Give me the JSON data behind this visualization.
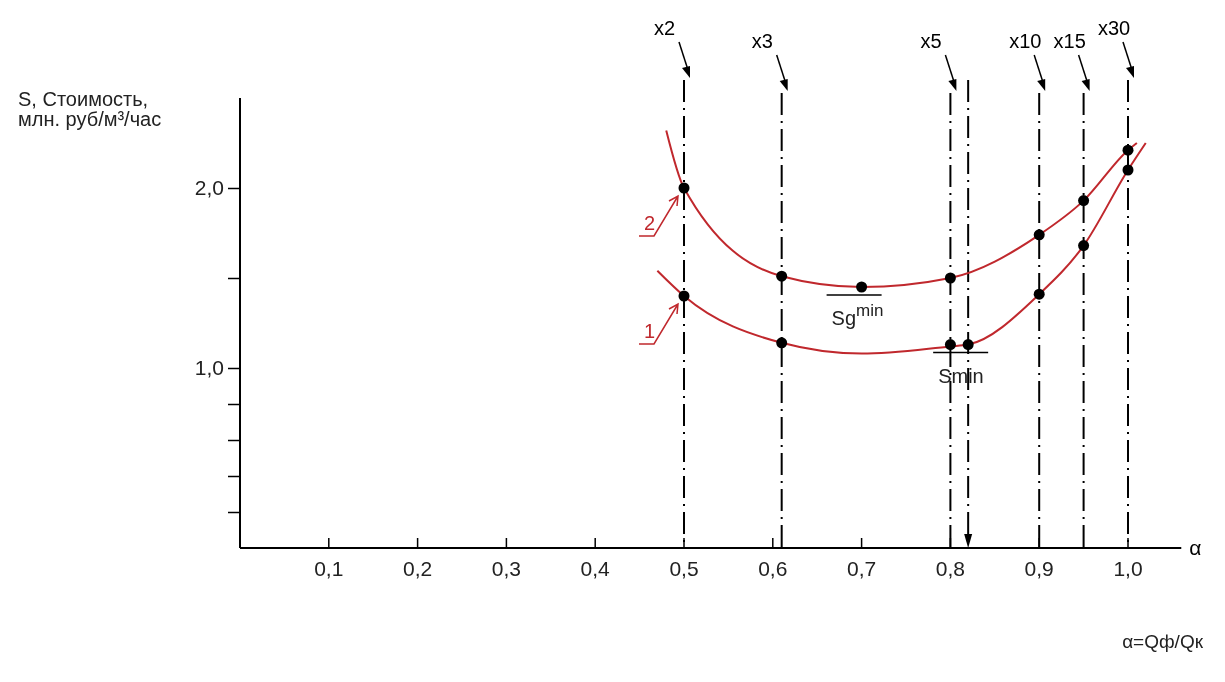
{
  "chart_data": {
    "type": "line",
    "ylabel": "S, Стоимость,\nмлн. руб/м³/час",
    "xlabel": "α",
    "legend": "center",
    "xlim": [
      0,
      1.06
    ],
    "ylim": [
      0,
      2.5
    ],
    "xticks": [
      {
        "value": 0.1,
        "label": "0,1"
      },
      {
        "value": 0.2,
        "label": "0,2"
      },
      {
        "value": 0.3,
        "label": "0,3"
      },
      {
        "value": 0.4,
        "label": "0,4"
      },
      {
        "value": 0.5,
        "label": "0,5"
      },
      {
        "value": 0.6,
        "label": "0,6"
      },
      {
        "value": 0.7,
        "label": "0,7"
      },
      {
        "value": 0.8,
        "label": "0,8"
      },
      {
        "value": 0.9,
        "label": "0,9"
      },
      {
        "value": 1.0,
        "label": "1,0"
      }
    ],
    "yticks": [
      {
        "value": 0.2,
        "label": null
      },
      {
        "value": 0.4,
        "label": null
      },
      {
        "value": 0.6,
        "label": null
      },
      {
        "value": 0.8,
        "label": null
      },
      {
        "value": 1.0,
        "label": "1,0"
      },
      {
        "value": 1.5,
        "label": null
      },
      {
        "value": 2.0,
        "label": "2,0"
      }
    ],
    "series": [
      {
        "name": "1",
        "type": "line",
        "color": "#c0282d",
        "marker": "none",
        "x": [
          0.47,
          0.5,
          0.61,
          0.7,
          0.8,
          0.82,
          0.9,
          0.95,
          1.0,
          1.02
        ],
        "values": [
          1.54,
          1.4,
          1.14,
          1.08,
          1.12,
          1.13,
          1.41,
          1.68,
          2.1,
          2.25
        ]
      },
      {
        "name": "2",
        "type": "line",
        "color": "#c0282d",
        "marker": "none",
        "x": [
          0.48,
          0.5,
          0.61,
          0.7,
          0.8,
          0.9,
          0.95,
          1.0,
          1.01
        ],
        "values": [
          2.32,
          2.0,
          1.51,
          1.45,
          1.5,
          1.74,
          1.93,
          2.21,
          2.25
        ]
      },
      {
        "type": "scatter",
        "color": "#000000",
        "marker": "circle",
        "x": [
          0.5,
          0.61,
          0.8,
          0.82,
          0.9,
          0.95,
          1.0
        ],
        "values": [
          1.4,
          1.14,
          1.13,
          1.13,
          1.41,
          1.68,
          2.1
        ]
      },
      {
        "type": "scatter",
        "color": "#000000",
        "marker": "circle",
        "x": [
          0.5,
          0.61,
          0.7,
          0.8,
          0.9,
          0.95,
          1.0
        ],
        "values": [
          2.0,
          1.51,
          1.45,
          1.5,
          1.74,
          1.93,
          2.21
        ]
      }
    ],
    "ref_lines": [
      {
        "axis": "x",
        "value": 0.5,
        "label": "x2",
        "line_style": "dashed"
      },
      {
        "axis": "x",
        "value": 0.61,
        "label": "x3",
        "line_style": "dashed"
      },
      {
        "axis": "x",
        "value": 0.8,
        "label": "x5",
        "line_style": "dashed"
      },
      {
        "axis": "x",
        "value": 0.82,
        "label": null,
        "line_style": "dashed"
      },
      {
        "axis": "x",
        "value": 0.9,
        "label": "x10",
        "line_style": "dashed"
      },
      {
        "axis": "x",
        "value": 0.95,
        "label": "x15",
        "line_style": "dashed"
      },
      {
        "axis": "x",
        "value": 1.0,
        "label": "x30",
        "line_style": "dashed"
      }
    ],
    "annotations": [
      {
        "text": "Sg$^{min}$",
        "x": 0.7,
        "y": 1.45
      },
      {
        "text": "Smin",
        "x": 0.82,
        "y": 1.13
      },
      "α=Qф/Qк"
    ]
  }
}
